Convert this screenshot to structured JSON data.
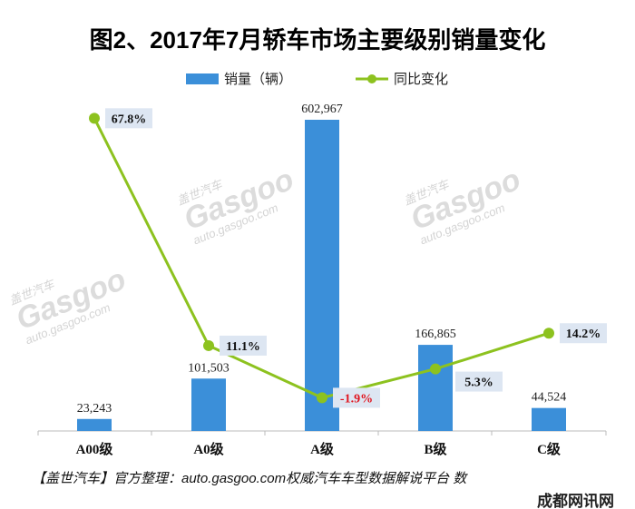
{
  "chart_data": {
    "type": "bar",
    "title": "图2、2017年7月轿车市场主要级别销量变化",
    "categories": [
      "A00级",
      "A0级",
      "A级",
      "B级",
      "C级"
    ],
    "series": [
      {
        "name": "销量（辆）",
        "type": "bar",
        "values": [
          23243,
          101503,
          602967,
          166865,
          44524
        ],
        "labels": [
          "23,243",
          "101,503",
          "602,967",
          "166,865",
          "44,524"
        ],
        "color": "#3b8fd9"
      },
      {
        "name": "同比变化",
        "type": "line",
        "values": [
          67.8,
          11.1,
          -1.9,
          5.3,
          14.2
        ],
        "labels": [
          "67.8%",
          "11.1%",
          "-1.9%",
          "5.3%",
          "14.2%"
        ],
        "color": "#8dc21f"
      }
    ],
    "legend": "top",
    "grid": false
  },
  "watermark": {
    "brand": "Gasgoo",
    "cn": "盖世汽车",
    "url": "auto.gasgoo.com"
  },
  "footer": "【盖世汽车】官方整理：auto.gasgoo.com权威汽车车型数据解说平台 数",
  "stamp": "成都网讯网"
}
